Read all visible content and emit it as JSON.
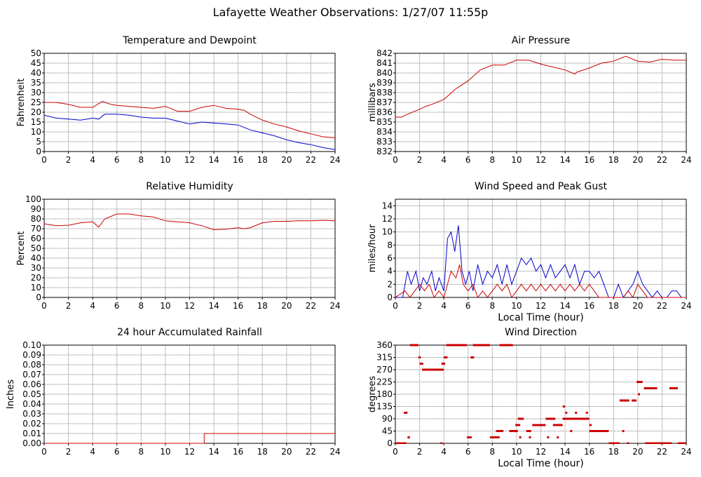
{
  "page": {
    "title": "Lafayette Weather Observations: 1/27/07 11:55p"
  },
  "colors": {
    "red": "#cc0000",
    "blue": "#0000cc",
    "grid": "#808080"
  },
  "chart_data": [
    {
      "id": "temperature",
      "type": "line",
      "title": "Temperature and Dewpoint",
      "ylabel": "Fahrenheit",
      "xlabel": "",
      "xlim": [
        0,
        24
      ],
      "ylim": [
        0,
        50
      ],
      "xticks": [
        0,
        2,
        4,
        6,
        8,
        10,
        12,
        14,
        16,
        18,
        20,
        22,
        24
      ],
      "yticks": [
        0,
        5,
        10,
        15,
        20,
        25,
        30,
        35,
        40,
        45,
        50
      ],
      "grid": true,
      "series": [
        {
          "color": "#cc0000",
          "x": [
            0,
            1,
            2,
            3,
            4,
            4.8,
            5.5,
            6,
            7,
            8,
            9,
            10,
            10.6,
            11,
            12,
            13,
            14,
            15,
            16,
            16.5,
            17,
            18,
            19,
            20,
            21,
            22,
            23,
            24
          ],
          "y": [
            25,
            25,
            24,
            22.5,
            22.5,
            25.5,
            24,
            23.5,
            23,
            22.5,
            22,
            23,
            21.5,
            20.5,
            20.5,
            22.5,
            23.5,
            22,
            21.5,
            21,
            19,
            16,
            14,
            12.5,
            10.5,
            9,
            7.5,
            7
          ]
        },
        {
          "color": "#0000cc",
          "x": [
            0,
            1,
            2,
            3,
            4,
            4.5,
            5,
            6,
            7,
            8,
            9,
            10,
            11,
            12,
            13,
            14,
            15,
            16,
            17,
            18,
            19,
            20,
            21,
            22,
            23,
            24
          ],
          "y": [
            18.5,
            17,
            16.5,
            16,
            17,
            16.5,
            19,
            19,
            18.5,
            17.5,
            17,
            17,
            15.5,
            14,
            15,
            14.5,
            14,
            13.5,
            11,
            9.5,
            8,
            6,
            4.5,
            3.5,
            2,
            1
          ]
        }
      ]
    },
    {
      "id": "pressure",
      "type": "line",
      "title": "Air Pressure",
      "ylabel": "millibars",
      "xlabel": "",
      "xlim": [
        0,
        24
      ],
      "ylim": [
        832,
        842
      ],
      "xticks": [
        0,
        2,
        4,
        6,
        8,
        10,
        12,
        14,
        16,
        18,
        20,
        22,
        24
      ],
      "yticks": [
        832,
        833,
        834,
        835,
        836,
        837,
        838,
        839,
        840,
        841,
        842
      ],
      "grid": true,
      "series": [
        {
          "color": "#cc0000",
          "x": [
            0,
            0.5,
            1,
            2,
            2.5,
            3,
            4,
            5,
            6,
            7,
            8,
            9,
            10,
            11,
            12,
            13,
            14,
            14.8,
            15,
            16,
            17,
            18,
            19,
            20,
            21,
            22,
            23,
            24
          ],
          "y": [
            835.5,
            835.5,
            835.8,
            836.3,
            836.6,
            836.8,
            837.3,
            838.4,
            839.2,
            840.3,
            840.8,
            840.8,
            841.3,
            841.3,
            840.9,
            840.6,
            840.3,
            839.9,
            840.1,
            840.5,
            841.0,
            841.2,
            841.7,
            841.2,
            841.1,
            841.4,
            841.3,
            841.3
          ]
        }
      ]
    },
    {
      "id": "humidity",
      "type": "line",
      "title": "Relative Humidity",
      "ylabel": "Percent",
      "xlabel": "",
      "xlim": [
        0,
        24
      ],
      "ylim": [
        0,
        100
      ],
      "xticks": [
        0,
        2,
        4,
        6,
        8,
        10,
        12,
        14,
        16,
        18,
        20,
        22,
        24
      ],
      "yticks": [
        0,
        10,
        20,
        30,
        40,
        50,
        60,
        70,
        80,
        90,
        100
      ],
      "grid": true,
      "series": [
        {
          "color": "#cc0000",
          "x": [
            0,
            1,
            2,
            3,
            4,
            4.5,
            5,
            6,
            7,
            8,
            9,
            10,
            11,
            12,
            13,
            14,
            15,
            16,
            16.5,
            17,
            18,
            19,
            20,
            21,
            22,
            23,
            24
          ],
          "y": [
            75,
            73,
            73.5,
            76,
            77,
            71.5,
            80,
            85,
            85,
            83,
            82,
            78,
            77,
            76,
            73,
            69,
            69.5,
            71,
            70,
            71,
            76,
            77.5,
            77.5,
            78,
            78,
            78.5,
            78
          ]
        }
      ]
    },
    {
      "id": "wind-speed",
      "type": "line",
      "title": "Wind Speed and Peak Gust",
      "ylabel": "miles/hour",
      "xlabel": "Local Time (hour)",
      "xlim": [
        0,
        24
      ],
      "ylim": [
        0,
        15
      ],
      "xticks": [
        0,
        2,
        4,
        6,
        8,
        10,
        12,
        14,
        16,
        18,
        20,
        22,
        24
      ],
      "yticks": [
        0,
        2,
        4,
        6,
        8,
        10,
        12,
        14
      ],
      "grid": true,
      "series": [
        {
          "color": "#0000cc",
          "x": [
            0,
            0.6,
            1,
            1.3,
            1.7,
            2,
            2.3,
            2.6,
            3,
            3.3,
            3.6,
            4,
            4.3,
            4.6,
            4.9,
            5.2,
            5.5,
            5.8,
            6.1,
            6.4,
            6.8,
            7.2,
            7.6,
            8,
            8.4,
            8.8,
            9.2,
            9.6,
            10,
            10.4,
            10.8,
            11.2,
            11.6,
            12,
            12.4,
            12.8,
            13.2,
            13.6,
            14,
            14.4,
            14.8,
            15.2,
            15.6,
            16,
            16.4,
            16.8,
            17.2,
            17.6,
            18,
            18.4,
            18.8,
            19.2,
            19.6,
            20,
            20.4,
            20.8,
            21.2,
            21.6,
            22,
            22.4,
            22.8,
            23.2,
            23.6,
            24
          ],
          "y": [
            0,
            0,
            4,
            2,
            4,
            1,
            3,
            2,
            4,
            1,
            3,
            1,
            9,
            10,
            7,
            11,
            4,
            2,
            4,
            1,
            5,
            2,
            4,
            3,
            5,
            2,
            5,
            2,
            4,
            6,
            5,
            6,
            4,
            5,
            3,
            5,
            3,
            4,
            5,
            3,
            5,
            2,
            4,
            4,
            3,
            4,
            2,
            0,
            0,
            2,
            0,
            1,
            2,
            4,
            2,
            1,
            0,
            1,
            0,
            0,
            1,
            1,
            0,
            0
          ]
        },
        {
          "color": "#cc0000",
          "x": [
            0,
            0.8,
            1.2,
            1.6,
            2,
            2.4,
            2.8,
            3.2,
            3.6,
            4,
            4.3,
            4.6,
            5,
            5.3,
            5.6,
            6,
            6.4,
            6.8,
            7.2,
            7.6,
            8,
            8.4,
            8.8,
            9.2,
            9.6,
            10,
            10.4,
            10.8,
            11.2,
            11.6,
            12,
            12.4,
            12.8,
            13.2,
            13.6,
            14,
            14.4,
            14.8,
            15.2,
            15.6,
            16,
            16.4,
            16.8,
            17.2,
            17.6,
            18,
            18.4,
            18.8,
            19.2,
            19.6,
            20,
            20.4,
            20.8,
            21.2,
            21.6,
            22,
            22.4,
            22.8,
            23.2,
            23.6,
            24
          ],
          "y": [
            0,
            1,
            0,
            1,
            2,
            1,
            2,
            0,
            1,
            0,
            2,
            4,
            3,
            5,
            2,
            1,
            2,
            0,
            1,
            0,
            1,
            2,
            1,
            2,
            0,
            1,
            2,
            1,
            2,
            1,
            2,
            1,
            2,
            1,
            2,
            1,
            2,
            1,
            2,
            1,
            2,
            1,
            0,
            0,
            0,
            0,
            0,
            0,
            1,
            0,
            2,
            1,
            0,
            0,
            0,
            0,
            0,
            0,
            0,
            0,
            0
          ]
        }
      ]
    },
    {
      "id": "rainfall",
      "type": "line",
      "title": "24 hour Accumulated Rainfall",
      "ylabel": "Inches",
      "xlabel": "",
      "xlim": [
        0,
        24
      ],
      "ylim": [
        0,
        0.1
      ],
      "xticks": [
        0,
        2,
        4,
        6,
        8,
        10,
        12,
        14,
        16,
        18,
        20,
        22,
        24
      ],
      "yticks": [
        0,
        0.01,
        0.02,
        0.03,
        0.04,
        0.05,
        0.06,
        0.07,
        0.08,
        0.09,
        0.1
      ],
      "ytick_decimals": 2,
      "grid": true,
      "series": [
        {
          "color": "#cc0000",
          "x": [
            0,
            13.2,
            13.2,
            24
          ],
          "y": [
            0,
            0,
            0.01,
            0.01
          ]
        }
      ]
    },
    {
      "id": "wind-direction",
      "type": "scatter",
      "title": "Wind Direction",
      "ylabel": "degrees",
      "xlabel": "Local Time (hour)",
      "xlim": [
        0,
        24
      ],
      "ylim": [
        0,
        360
      ],
      "xticks": [
        0,
        2,
        4,
        6,
        8,
        10,
        12,
        14,
        16,
        18,
        20,
        22,
        24
      ],
      "yticks": [
        0,
        45,
        90,
        135,
        180,
        225,
        270,
        315,
        360
      ],
      "grid": true,
      "series": [
        {
          "color": "#cc0000",
          "segments": [
            [
              0,
              0.9,
              0
            ],
            [
              0.7,
              1.0,
              112
            ],
            [
              1.0,
              1.2,
              22
            ],
            [
              1.2,
              1.9,
              360
            ],
            [
              1.9,
              2.1,
              315
            ],
            [
              2.0,
              2.3,
              292
            ],
            [
              2.2,
              4.0,
              270
            ],
            [
              3.8,
              4.1,
              292
            ],
            [
              4.0,
              4.3,
              315
            ],
            [
              4.2,
              5.9,
              360
            ],
            [
              5.9,
              6.3,
              22
            ],
            [
              6.2,
              6.5,
              315
            ],
            [
              6.4,
              7.8,
              360
            ],
            [
              7.8,
              8.6,
              22
            ],
            [
              8.3,
              8.9,
              45
            ],
            [
              8.6,
              9.7,
              360
            ],
            [
              9.4,
              10.1,
              45
            ],
            [
              9.9,
              10.3,
              67
            ],
            [
              10.1,
              10.6,
              90
            ],
            [
              10.8,
              11.2,
              45
            ],
            [
              11.3,
              12.4,
              67
            ],
            [
              12.4,
              13.2,
              90
            ],
            [
              13.0,
              13.8,
              67
            ],
            [
              13.8,
              16.0,
              90
            ],
            [
              16.0,
              17.6,
              45
            ],
            [
              17.6,
              18.5,
              0
            ],
            [
              18.5,
              19.3,
              157
            ],
            [
              19.5,
              19.9,
              157
            ],
            [
              19.9,
              20.4,
              225
            ],
            [
              20.5,
              21.6,
              202
            ],
            [
              20.6,
              22.8,
              0
            ],
            [
              22.6,
              23.3,
              202
            ],
            [
              23.3,
              24,
              0
            ]
          ],
          "points": [
            [
              1.1,
              22
            ],
            [
              3.8,
              0
            ],
            [
              8.1,
              22
            ],
            [
              10.3,
              22
            ],
            [
              11.1,
              22
            ],
            [
              12.6,
              22
            ],
            [
              13.4,
              22
            ],
            [
              13.9,
              135
            ],
            [
              14.1,
              112
            ],
            [
              14.5,
              45
            ],
            [
              14.9,
              112
            ],
            [
              15.8,
              112
            ],
            [
              16.1,
              67
            ],
            [
              18.8,
              45
            ],
            [
              19.2,
              0
            ],
            [
              20.1,
              180
            ]
          ]
        }
      ]
    }
  ]
}
